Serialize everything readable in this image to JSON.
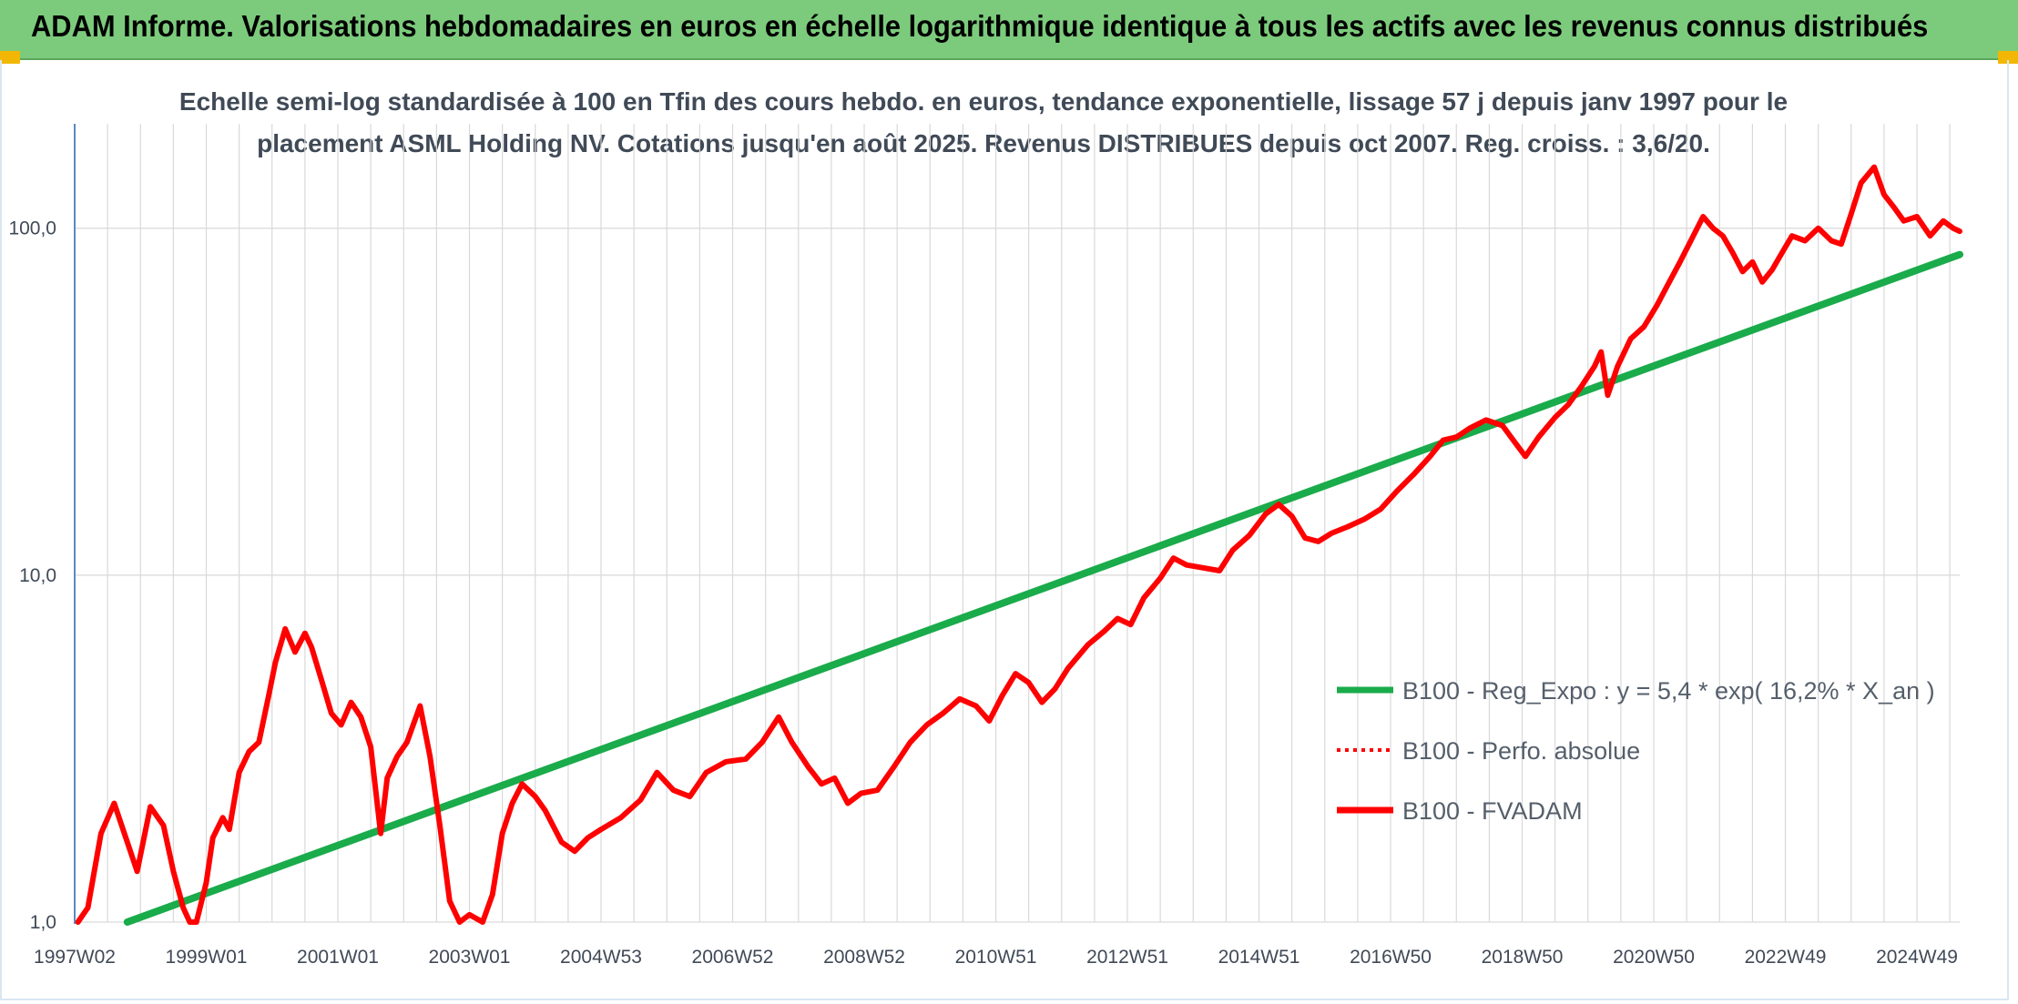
{
  "header": {
    "title": "ADAM Informe. Valorisations hebdomadaires en euros en échelle logarithmique identique à tous les actifs avec les revenus connus distribués"
  },
  "colors": {
    "banner": "#7ccb7c",
    "corner": "#f2b705",
    "trend": "#1aab4b",
    "price": "#ff0000",
    "grid": "#d9d9d9"
  },
  "chart_data": {
    "type": "line",
    "subtitle_line1": "Echelle semi-log standardisée à 100 en Tfin des cours hebdo. en euros, tendance exponentielle, lissage 57 j depuis janv 1997 pour le",
    "subtitle_line2": "placement ASML Holding NV. Cotations jusqu'en août 2025. Revenus DISTRIBUES depuis oct 2007. Reg. croiss. : 3,6/20.",
    "y_scale": "log",
    "ylim": [
      1,
      200
    ],
    "xlim": [
      1997.0,
      2025.65
    ],
    "y_ticks": [
      {
        "value": 1,
        "label": "1,0"
      },
      {
        "value": 10,
        "label": "10,0"
      },
      {
        "value": 100,
        "label": "100,0"
      }
    ],
    "x_ticks": [
      {
        "value": 1997.0,
        "label": "1997W02"
      },
      {
        "value": 1999.0,
        "label": "1999W01"
      },
      {
        "value": 2001.0,
        "label": "2001W01"
      },
      {
        "value": 2003.0,
        "label": "2003W01"
      },
      {
        "value": 2005.0,
        "label": "2004W53"
      },
      {
        "value": 2007.0,
        "label": "2006W52"
      },
      {
        "value": 2009.0,
        "label": "2008W52"
      },
      {
        "value": 2011.0,
        "label": "2010W51"
      },
      {
        "value": 2013.0,
        "label": "2012W51"
      },
      {
        "value": 2015.0,
        "label": "2014W51"
      },
      {
        "value": 2017.0,
        "label": "2016W50"
      },
      {
        "value": 2019.0,
        "label": "2018W50"
      },
      {
        "value": 2021.0,
        "label": "2020W50"
      },
      {
        "value": 2023.0,
        "label": "2022W49"
      },
      {
        "value": 2025.0,
        "label": "2024W49"
      }
    ],
    "legend_position": "bottom-right",
    "series": [
      {
        "name": "B100 - Reg_Expo : y = 5,4 * exp( 16,2% *  X_an )",
        "style": "solid",
        "color": "#1aab4b",
        "points": [
          [
            1997.8,
            1.0
          ],
          [
            2025.65,
            84.0
          ]
        ]
      },
      {
        "name": "B100 - Perfo. absolue",
        "style": "dotted",
        "color": "#ff0000",
        "points": []
      },
      {
        "name": "B100 - FVADAM",
        "style": "solid",
        "color": "#ff0000",
        "points": [
          [
            1997.05,
            1.0
          ],
          [
            1997.2,
            1.1
          ],
          [
            1997.4,
            1.8
          ],
          [
            1997.6,
            2.2
          ],
          [
            1997.8,
            1.7
          ],
          [
            1997.95,
            1.4
          ],
          [
            1998.15,
            2.15
          ],
          [
            1998.35,
            1.9
          ],
          [
            1998.5,
            1.4
          ],
          [
            1998.65,
            1.1
          ],
          [
            1998.75,
            0.85
          ],
          [
            1998.85,
            0.95
          ],
          [
            1999.0,
            1.3
          ],
          [
            1999.1,
            1.75
          ],
          [
            1999.25,
            2.0
          ],
          [
            1999.35,
            1.85
          ],
          [
            1999.5,
            2.7
          ],
          [
            1999.65,
            3.1
          ],
          [
            1999.8,
            3.3
          ],
          [
            1999.95,
            4.5
          ],
          [
            2000.05,
            5.6
          ],
          [
            2000.2,
            7.0
          ],
          [
            2000.35,
            6.0
          ],
          [
            2000.5,
            6.8
          ],
          [
            2000.6,
            6.2
          ],
          [
            2000.75,
            5.0
          ],
          [
            2000.9,
            4.0
          ],
          [
            2001.05,
            3.7
          ],
          [
            2001.2,
            4.3
          ],
          [
            2001.35,
            3.9
          ],
          [
            2001.5,
            3.2
          ],
          [
            2001.65,
            1.8
          ],
          [
            2001.75,
            2.6
          ],
          [
            2001.9,
            3.0
          ],
          [
            2002.05,
            3.3
          ],
          [
            2002.25,
            4.2
          ],
          [
            2002.4,
            3.0
          ],
          [
            2002.55,
            1.9
          ],
          [
            2002.7,
            1.15
          ],
          [
            2002.85,
            0.9
          ],
          [
            2003.0,
            1.05
          ],
          [
            2003.2,
            0.95
          ],
          [
            2003.35,
            1.2
          ],
          [
            2003.5,
            1.8
          ],
          [
            2003.65,
            2.2
          ],
          [
            2003.8,
            2.5
          ],
          [
            2004.0,
            2.3
          ],
          [
            2004.15,
            2.1
          ],
          [
            2004.4,
            1.7
          ],
          [
            2004.6,
            1.6
          ],
          [
            2004.8,
            1.75
          ],
          [
            2005.0,
            1.85
          ],
          [
            2005.3,
            2.0
          ],
          [
            2005.6,
            2.25
          ],
          [
            2005.85,
            2.7
          ],
          [
            2006.1,
            2.4
          ],
          [
            2006.35,
            2.3
          ],
          [
            2006.6,
            2.7
          ],
          [
            2006.9,
            2.9
          ],
          [
            2007.2,
            2.95
          ],
          [
            2007.45,
            3.3
          ],
          [
            2007.7,
            3.9
          ],
          [
            2007.9,
            3.3
          ],
          [
            2008.15,
            2.8
          ],
          [
            2008.35,
            2.5
          ],
          [
            2008.55,
            2.6
          ],
          [
            2008.75,
            2.2
          ],
          [
            2008.95,
            2.35
          ],
          [
            2009.2,
            2.4
          ],
          [
            2009.45,
            2.8
          ],
          [
            2009.7,
            3.3
          ],
          [
            2009.95,
            3.7
          ],
          [
            2010.2,
            4.0
          ],
          [
            2010.45,
            4.4
          ],
          [
            2010.7,
            4.2
          ],
          [
            2010.9,
            3.8
          ],
          [
            2011.1,
            4.5
          ],
          [
            2011.3,
            5.2
          ],
          [
            2011.5,
            4.9
          ],
          [
            2011.7,
            4.3
          ],
          [
            2011.9,
            4.7
          ],
          [
            2012.1,
            5.4
          ],
          [
            2012.4,
            6.3
          ],
          [
            2012.65,
            6.9
          ],
          [
            2012.85,
            7.5
          ],
          [
            2013.05,
            7.2
          ],
          [
            2013.25,
            8.6
          ],
          [
            2013.5,
            9.8
          ],
          [
            2013.7,
            11.2
          ],
          [
            2013.9,
            10.7
          ],
          [
            2014.15,
            10.5
          ],
          [
            2014.4,
            10.3
          ],
          [
            2014.6,
            11.8
          ],
          [
            2014.85,
            13.0
          ],
          [
            2015.1,
            15.0
          ],
          [
            2015.3,
            16.0
          ],
          [
            2015.5,
            14.8
          ],
          [
            2015.7,
            12.8
          ],
          [
            2015.9,
            12.5
          ],
          [
            2016.1,
            13.2
          ],
          [
            2016.35,
            13.8
          ],
          [
            2016.6,
            14.5
          ],
          [
            2016.85,
            15.5
          ],
          [
            2017.1,
            17.5
          ],
          [
            2017.35,
            19.5
          ],
          [
            2017.6,
            22.0
          ],
          [
            2017.8,
            24.5
          ],
          [
            2018.0,
            25.0
          ],
          [
            2018.2,
            26.5
          ],
          [
            2018.45,
            28.0
          ],
          [
            2018.7,
            27.0
          ],
          [
            2018.9,
            24.0
          ],
          [
            2019.05,
            22.0
          ],
          [
            2019.25,
            25.0
          ],
          [
            2019.5,
            28.5
          ],
          [
            2019.7,
            31.0
          ],
          [
            2019.9,
            35.0
          ],
          [
            2020.1,
            40.0
          ],
          [
            2020.2,
            44.0
          ],
          [
            2020.3,
            33.0
          ],
          [
            2020.45,
            40.0
          ],
          [
            2020.65,
            48.0
          ],
          [
            2020.85,
            52.0
          ],
          [
            2021.05,
            60.0
          ],
          [
            2021.2,
            68.0
          ],
          [
            2021.4,
            80.0
          ],
          [
            2021.6,
            95.0
          ],
          [
            2021.75,
            108.0
          ],
          [
            2021.9,
            100.0
          ],
          [
            2022.05,
            95.0
          ],
          [
            2022.2,
            85.0
          ],
          [
            2022.35,
            75.0
          ],
          [
            2022.5,
            80.0
          ],
          [
            2022.65,
            70.0
          ],
          [
            2022.8,
            76.0
          ],
          [
            2022.95,
            85.0
          ],
          [
            2023.1,
            95.0
          ],
          [
            2023.3,
            92.0
          ],
          [
            2023.5,
            100.0
          ],
          [
            2023.7,
            92.0
          ],
          [
            2023.85,
            90.0
          ],
          [
            2024.0,
            110.0
          ],
          [
            2024.15,
            135.0
          ],
          [
            2024.35,
            150.0
          ],
          [
            2024.5,
            125.0
          ],
          [
            2024.65,
            115.0
          ],
          [
            2024.8,
            105.0
          ],
          [
            2025.0,
            108.0
          ],
          [
            2025.2,
            95.0
          ],
          [
            2025.4,
            105.0
          ],
          [
            2025.55,
            100.0
          ],
          [
            2025.65,
            98.0
          ]
        ]
      }
    ]
  }
}
